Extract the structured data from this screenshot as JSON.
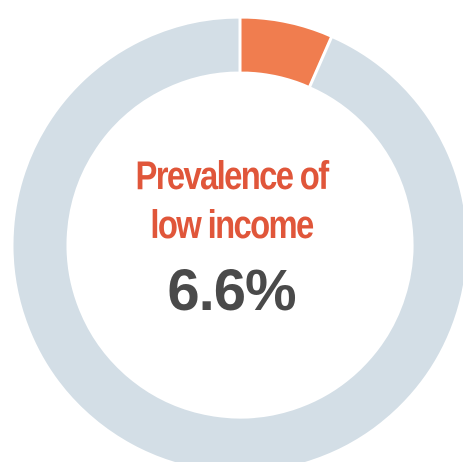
{
  "chart_data": {
    "type": "pie",
    "style": "donut",
    "title_lines": [
      "Prevalence of",
      "low income"
    ],
    "value_label": "6.6%",
    "slices": [
      {
        "value": 6.6,
        "color": "#f07d4f"
      },
      {
        "value": 93.4,
        "color": "#d3dee6"
      }
    ],
    "start": "top",
    "direction": "clockwise",
    "colors": {
      "title": "#e0563a",
      "value": "#4a4a4a",
      "separator": "#ffffff"
    }
  }
}
